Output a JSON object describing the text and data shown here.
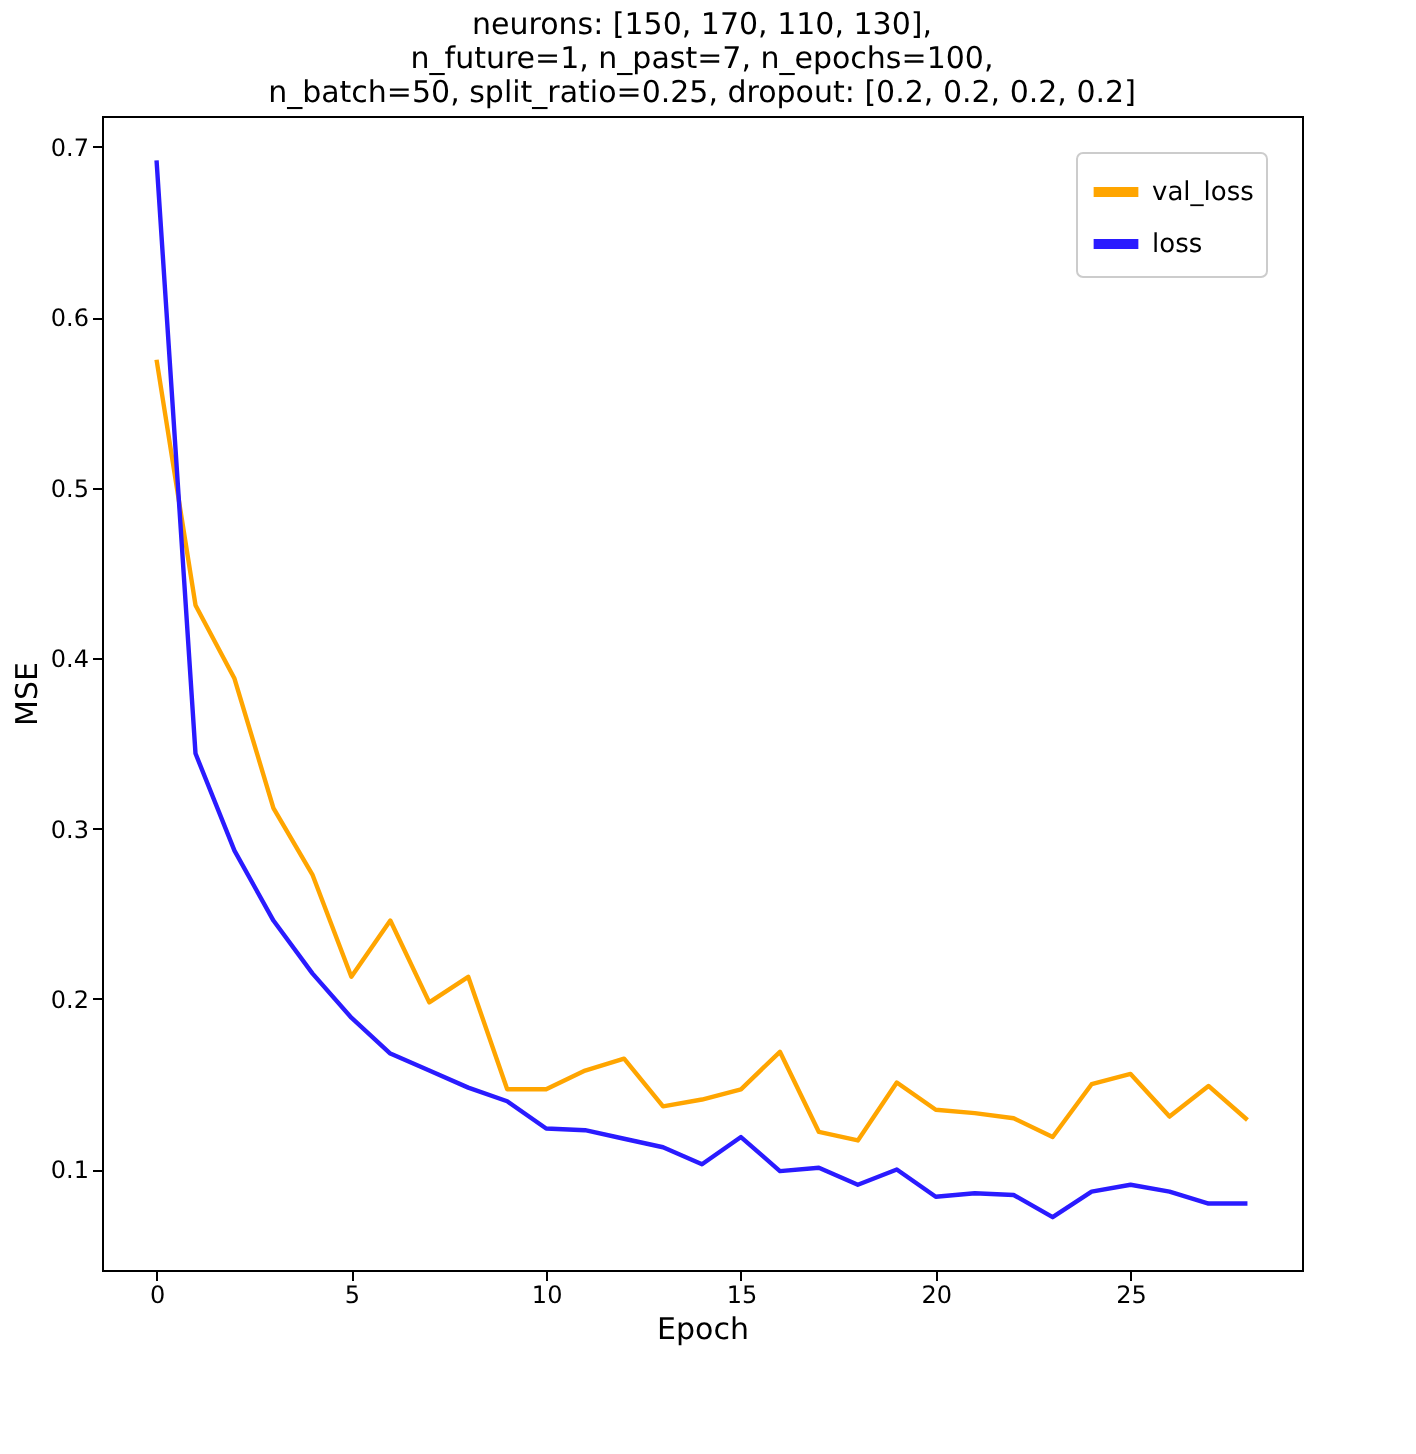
{
  "chart_data": {
    "type": "line",
    "title": [
      "neurons: [150, 170, 110, 130],",
      "n_future=1, n_past=7, n_epochs=100,",
      "n_batch=50, split_ratio=0.25, dropout: [0.2, 0.2, 0.2, 0.2]"
    ],
    "xlabel": "Epoch",
    "ylabel": "MSE",
    "x": [
      0,
      1,
      2,
      3,
      4,
      5,
      6,
      7,
      8,
      9,
      10,
      11,
      12,
      13,
      14,
      15,
      16,
      17,
      18,
      19,
      20,
      21,
      22,
      23,
      24,
      25,
      26,
      27,
      28
    ],
    "series": [
      {
        "name": "val_loss",
        "color": "#ffa500",
        "values": [
          0.575,
          0.431,
          0.388,
          0.312,
          0.273,
          0.213,
          0.246,
          0.198,
          0.213,
          0.147,
          0.147,
          0.158,
          0.165,
          0.137,
          0.141,
          0.147,
          0.169,
          0.122,
          0.117,
          0.151,
          0.135,
          0.133,
          0.13,
          0.119,
          0.15,
          0.156,
          0.131,
          0.149,
          0.129
        ]
      },
      {
        "name": "loss",
        "color": "#2a1bff",
        "values": [
          0.692,
          0.344,
          0.287,
          0.246,
          0.215,
          0.189,
          0.168,
          0.158,
          0.148,
          0.14,
          0.124,
          0.123,
          0.118,
          0.113,
          0.103,
          0.119,
          0.099,
          0.101,
          0.091,
          0.1,
          0.084,
          0.086,
          0.085,
          0.072,
          0.087,
          0.091,
          0.087,
          0.08,
          0.08
        ]
      }
    ],
    "xlim": [
      -1.4,
      29.4
    ],
    "ylim": [
      0.041,
      0.718
    ],
    "xticks": [
      0,
      5,
      10,
      15,
      20,
      25
    ],
    "yticks": [
      0.1,
      0.2,
      0.3,
      0.4,
      0.5,
      0.6,
      0.7
    ],
    "grid": false,
    "legend": "top right",
    "marker": "none",
    "line_style": "solid"
  }
}
